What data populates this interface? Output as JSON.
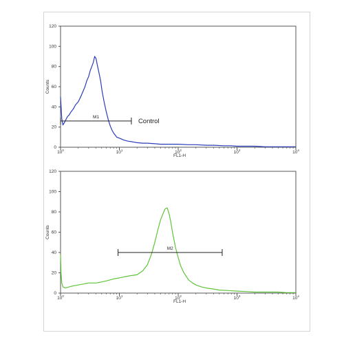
{
  "chart_data": [
    {
      "type": "line",
      "title": "",
      "xlabel": "FL1-H",
      "ylabel": "Counts",
      "x_scale": "log",
      "xlim": [
        1,
        10000
      ],
      "ylim": [
        0,
        120
      ],
      "x_ticks": [
        {
          "base": "10",
          "exp": "0",
          "value": 1
        },
        {
          "base": "10",
          "exp": "1",
          "value": 10
        },
        {
          "base": "10",
          "exp": "2",
          "value": 100
        },
        {
          "base": "10",
          "exp": "3",
          "value": 1000
        },
        {
          "base": "10",
          "exp": "4",
          "value": 10000
        }
      ],
      "y_ticks": [
        "0",
        "20",
        "40",
        "60",
        "80",
        "100",
        "120"
      ],
      "grid": false,
      "series": [
        {
          "color": "#2a3cb8",
          "x": [
            1,
            1.05,
            1.1,
            1.2,
            1.3,
            1.4,
            1.5,
            1.65,
            1.8,
            2,
            2.2,
            2.4,
            2.6,
            2.8,
            3,
            3.2,
            3.4,
            3.6,
            3.8,
            4,
            4.2,
            4.5,
            4.8,
            5.1,
            5.5,
            6,
            6.5,
            7,
            7.5,
            8,
            8.5,
            9,
            10,
            11,
            12,
            14,
            16,
            18,
            20,
            25,
            30,
            40,
            50,
            70,
            100,
            150,
            200,
            300,
            400,
            600,
            800,
            1000,
            1500,
            2000,
            3000,
            5000,
            7000,
            10000
          ],
          "y": [
            50,
            28,
            22,
            26,
            30,
            32,
            35,
            38,
            42,
            45,
            50,
            55,
            60,
            66,
            70,
            76,
            80,
            84,
            90,
            88,
            82,
            74,
            66,
            55,
            45,
            35,
            27,
            21,
            17,
            14,
            12,
            10,
            9,
            8,
            7,
            6,
            5.5,
            5,
            4.5,
            4,
            4,
            3.5,
            3,
            3,
            3,
            2.5,
            2.5,
            2,
            2,
            1.5,
            1.5,
            1,
            1,
            1,
            0.5,
            0.5,
            0.5,
            0.5
          ]
        },
        {
          "color": "#5ec43a",
          "x": [
            1,
            1.02,
            1.05,
            1.1,
            1.2,
            1.4,
            1.6,
            2,
            2.5,
            3,
            4,
            5,
            6,
            8,
            10,
            12,
            15,
            20,
            25,
            30,
            35,
            40,
            45,
            50,
            55,
            60,
            65,
            70,
            75,
            80,
            90,
            100,
            110,
            125,
            150,
            175,
            200,
            250,
            300,
            400,
            500,
            700,
            1000,
            1500,
            2000,
            3000,
            5000,
            7000,
            10000
          ],
          "y": [
            38,
            20,
            10,
            6,
            5,
            6,
            7,
            8,
            9,
            10,
            10,
            11,
            12,
            14,
            15,
            16,
            17,
            18,
            22,
            28,
            38,
            50,
            62,
            72,
            78,
            83,
            84,
            78,
            70,
            60,
            45,
            35,
            27,
            20,
            13,
            10,
            8,
            6,
            5,
            4,
            3,
            2.5,
            2,
            1.5,
            1,
            1,
            1,
            0.5,
            0.5
          ]
        }
      ],
      "markers": [
        {
          "label": "M1",
          "x": [
            1,
            16
          ],
          "y": 26
        },
        {
          "label": "M2",
          "x": [
            9.5,
            560
          ],
          "y": 40
        }
      ],
      "annotations": [
        {
          "text": "Control"
        }
      ]
    }
  ]
}
